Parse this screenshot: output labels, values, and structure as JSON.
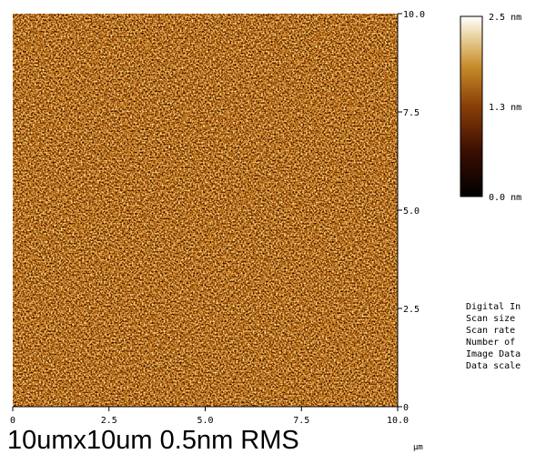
{
  "image": {
    "y_ticks": [
      "0",
      "2.5",
      "5.0",
      "7.5",
      "10.0"
    ],
    "x_ticks": [
      "0",
      "2.5",
      "5.0",
      "7.5",
      "10.0"
    ],
    "x_unit": "µm"
  },
  "color_scale": {
    "labels": [
      "2.5 nm",
      "1.3 nm",
      "0.0 nm"
    ]
  },
  "parameters": [
    "Digital In",
    "Scan size",
    "Scan rate",
    "Number of",
    "Image Data",
    "Data scale"
  ],
  "caption": "10umx10um 0.5nm RMS"
}
